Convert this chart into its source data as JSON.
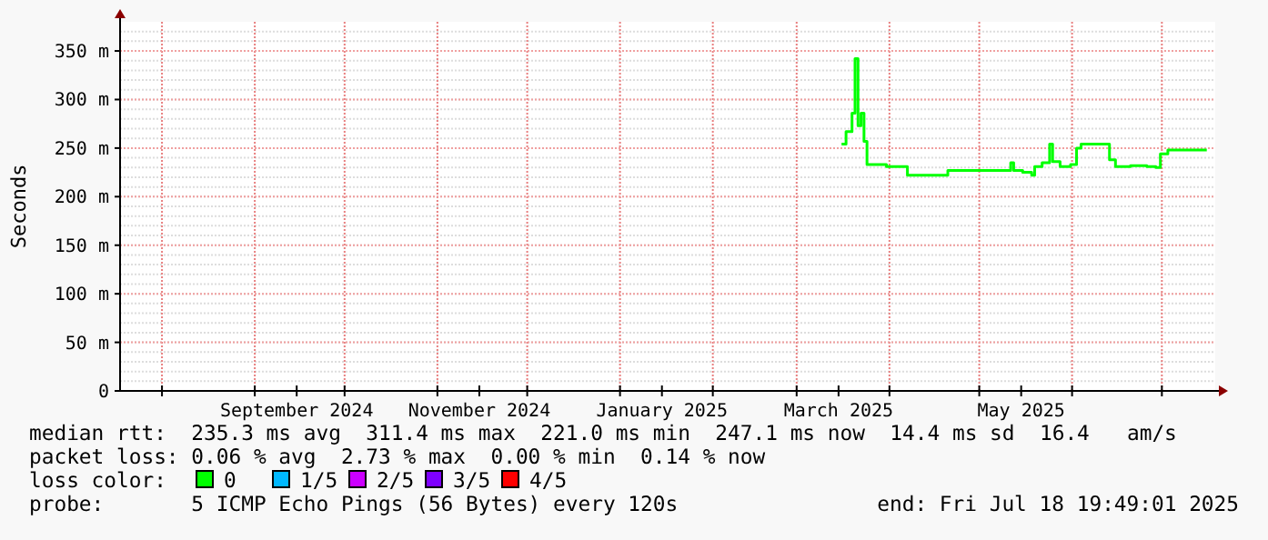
{
  "chart_data": {
    "type": "line",
    "ylabel": "Seconds",
    "legend_title": "loss color:",
    "legend": "bottom",
    "grid": true,
    "marker": "none",
    "line_style": "solid",
    "xlim": [
      "2024-07-18",
      "2025-07-18T19:49"
    ],
    "xticks": [
      {
        "value": "2024-08-01",
        "label": null
      },
      {
        "value": "2024-09-01",
        "label": null
      },
      {
        "value": "2024-09-15",
        "label": "September 2024"
      },
      {
        "value": "2024-10-01",
        "label": null
      },
      {
        "value": "2024-11-01",
        "label": null
      },
      {
        "value": "2024-11-15",
        "label": "November 2024"
      },
      {
        "value": "2024-12-01",
        "label": null
      },
      {
        "value": "2025-01-01",
        "label": null
      },
      {
        "value": "2025-01-15",
        "label": "January 2025"
      },
      {
        "value": "2025-02-01",
        "label": null
      },
      {
        "value": "2025-03-01",
        "label": null
      },
      {
        "value": "2025-03-15",
        "label": "March 2025"
      },
      {
        "value": "2025-04-01",
        "label": null
      },
      {
        "value": "2025-05-01",
        "label": null
      },
      {
        "value": "2025-05-15",
        "label": "May 2025"
      },
      {
        "value": "2025-06-01",
        "label": null
      },
      {
        "value": "2025-07-01",
        "label": null
      }
    ],
    "ylim": [
      0,
      380
    ],
    "yticks": [
      0,
      {
        "value": 50,
        "label": "50 m"
      },
      {
        "value": 100,
        "label": "100 m"
      },
      {
        "value": 150,
        "label": "150 m"
      },
      {
        "value": 200,
        "label": "200 m"
      },
      {
        "value": 250,
        "label": "250 m"
      },
      {
        "value": 300,
        "label": "300 m"
      },
      {
        "value": 350,
        "label": "350 m"
      }
    ],
    "x": [
      "2025-03-16",
      "2025-03-19",
      "2025-03-20",
      "2025-03-21",
      "2025-03-22",
      "2025-03-23",
      "2025-03-24",
      "2025-03-25",
      "2025-04-06",
      "2025-04-08",
      "2025-04-20",
      "2025-04-21",
      "2025-05-11",
      "2025-05-12",
      "2025-05-13",
      "2025-05-18",
      "2025-05-19",
      "2025-05-20",
      "2025-05-24",
      "2025-05-25",
      "2025-05-26",
      "2025-05-30",
      "2025-06-02",
      "2025-06-03",
      "2025-06-05",
      "2025-06-13",
      "2025-06-14",
      "2025-06-17",
      "2025-06-24",
      "2025-06-28",
      "2025-06-30",
      "2025-07-01",
      "2025-07-05",
      "2025-07-16"
    ],
    "series": [
      {
        "name": "0",
        "color": "#00ff00",
        "values": [
          254,
          267,
          286,
          342,
          273,
          286,
          257,
          233,
          231,
          222,
          222,
          227,
          227,
          235,
          227,
          225,
          222,
          231,
          235,
          254,
          236,
          231,
          233,
          250,
          254,
          254,
          238,
          231,
          232,
          231,
          230,
          244,
          248,
          248
        ]
      },
      {
        "name": "1/5",
        "color": "#00b8ff",
        "values": [
          null,
          null,
          null,
          null,
          null,
          null,
          null,
          null,
          null,
          null,
          null,
          null,
          null,
          null,
          null,
          null,
          null,
          null,
          null,
          null,
          null,
          null,
          null,
          null,
          null,
          null,
          null,
          null,
          null,
          null,
          null,
          null,
          null,
          null
        ]
      },
      {
        "name": "2/5",
        "color": "#cc00ff",
        "values": [
          null,
          null,
          null,
          null,
          null,
          null,
          null,
          null,
          null,
          null,
          null,
          null,
          null,
          null,
          null,
          null,
          null,
          null,
          null,
          null,
          null,
          null,
          null,
          null,
          null,
          null,
          null,
          null,
          null,
          null,
          null,
          null,
          null,
          null
        ]
      },
      {
        "name": "3/5",
        "color": "#7e00ff",
        "values": [
          null,
          null,
          null,
          null,
          null,
          null,
          null,
          null,
          null,
          null,
          null,
          null,
          null,
          null,
          null,
          null,
          null,
          null,
          null,
          null,
          null,
          null,
          null,
          null,
          null,
          null,
          null,
          null,
          null,
          null,
          null,
          null,
          null,
          null
        ]
      },
      {
        "name": "4/5",
        "color": "#ff0000",
        "values": [
          null,
          null,
          null,
          null,
          null,
          null,
          null,
          null,
          null,
          null,
          null,
          null,
          null,
          null,
          null,
          null,
          null,
          null,
          null,
          null,
          null,
          null,
          null,
          null,
          null,
          null,
          null,
          null,
          null,
          null,
          null,
          null,
          null,
          null
        ]
      }
    ],
    "annotations": [
      "median rtt:  235.3 ms avg  311.4 ms max  221.0 ms min  247.1 ms now  14.4 ms sd  16.4   am/s",
      "packet loss: 0.06 % avg  2.73 % max  0.00 % min  0.14 % now",
      "probe:       5 ICMP Echo Pings (56 Bytes) every 120s",
      "end: Fri Jul 18 19:49:01 2025"
    ]
  }
}
